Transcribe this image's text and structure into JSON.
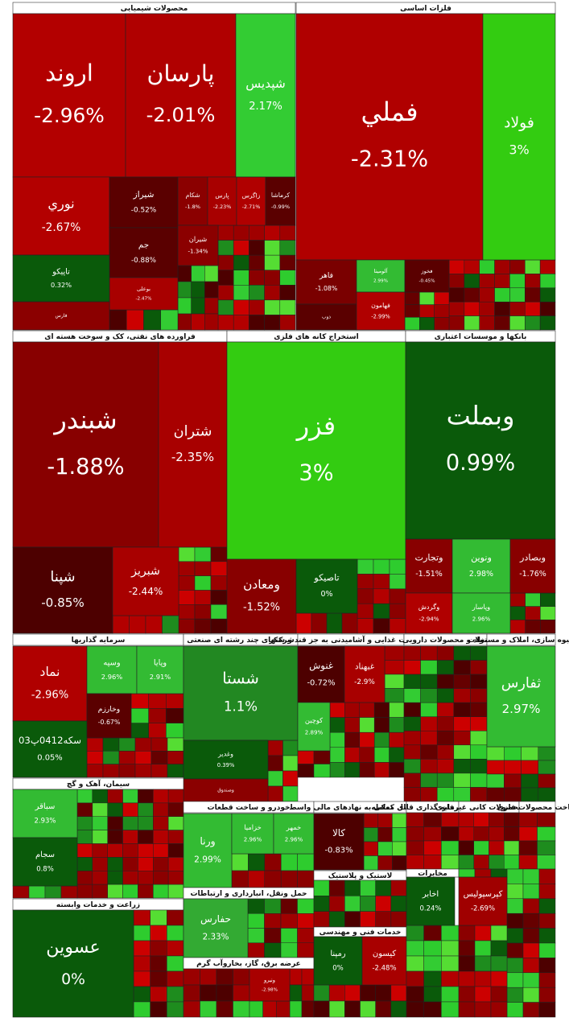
{
  "sectors": [
    {
      "title": "محصولات شیمیایی",
      "tiles": [
        {
          "name": "اروند",
          "change": "-2.96%",
          "color": "#b30000"
        },
        {
          "name": "پارسان",
          "change": "-2.01%",
          "color": "#b00000"
        },
        {
          "name": "شپدیس",
          "change": "2.17%",
          "color": "#33cc33"
        },
        {
          "name": "نوري",
          "change": "-2.67%",
          "color": "#b30000"
        },
        {
          "name": "شیراز",
          "change": "-0.52%",
          "color": "#5a0000"
        },
        {
          "name": "جم",
          "change": "-0.88%",
          "color": "#5a0000"
        },
        {
          "name": "بوعلی",
          "change": "-2.47%",
          "color": "#a80000"
        },
        {
          "name": "تاپیکو",
          "change": "0.32%",
          "color": "#0a5a0a"
        },
        {
          "name": "فارس",
          "color": "#8b0000"
        },
        {
          "name": "شکام",
          "change": "-1.8%",
          "color": "#8b0000"
        },
        {
          "name": "پارس",
          "change": "-2.23%",
          "color": "#a80000"
        },
        {
          "name": "زاگرس",
          "change": "-2.71%",
          "color": "#b00000"
        },
        {
          "name": "کرماشا",
          "change": "-0.99%",
          "color": "#5a0000"
        },
        {
          "name": "شیران",
          "change": "-1.34%",
          "color": "#8b0000"
        }
      ]
    },
    {
      "title": "فلزات اساسی",
      "tiles": [
        {
          "name": "فملي",
          "change": "-2.31%",
          "color": "#b00000"
        },
        {
          "name": "فولاد",
          "change": "3%",
          "color": "#33cc11"
        },
        {
          "name": "فاهر",
          "change": "-1.08%",
          "color": "#7a0000"
        },
        {
          "name": "آلومینا",
          "change": "2.99%",
          "color": "#33bb33"
        },
        {
          "name": "فخوز",
          "change": "-0.45%",
          "color": "#5a0000"
        },
        {
          "name": "ذوب",
          "color": "#5a0000"
        },
        {
          "name": "فهامون",
          "change": "-2.99%",
          "color": "#b00000"
        }
      ]
    },
    {
      "title": "فراورده های نفتی، کک و سوخت هسته ای",
      "tiles": [
        {
          "name": "شبندر",
          "change": "-1.88%",
          "color": "#880000"
        },
        {
          "name": "شتران",
          "change": "-2.35%",
          "color": "#a80000"
        },
        {
          "name": "شپنا",
          "change": "-0.85%",
          "color": "#4d0000"
        },
        {
          "name": "شبریز",
          "change": "-2.44%",
          "color": "#a80000"
        }
      ]
    },
    {
      "title": "استخراج کانه های فلزی",
      "tiles": [
        {
          "name": "فزر",
          "change": "3%",
          "color": "#33cc11"
        },
        {
          "name": "ومعادن",
          "change": "-1.52%",
          "color": "#880000"
        },
        {
          "name": "تاصیکو",
          "change": "0%",
          "color": "#0a5a0a"
        }
      ]
    },
    {
      "title": "بانکها و موسسات اعتباری",
      "tiles": [
        {
          "name": "وبملت",
          "change": "0.99%",
          "color": "#0a5a0a"
        },
        {
          "name": "وتجارت",
          "change": "-1.51%",
          "color": "#880000"
        },
        {
          "name": "ونوین",
          "change": "2.98%",
          "color": "#33bb33"
        },
        {
          "name": "وبصادر",
          "change": "-1.76%",
          "color": "#880000"
        },
        {
          "name": "وگردش",
          "change": "-2.94%",
          "color": "#b00000"
        },
        {
          "name": "وپاسار",
          "change": "2.96%",
          "color": "#33bb33"
        }
      ]
    },
    {
      "title": "سرمایه گذاریها",
      "tiles": [
        {
          "name": "نماد",
          "change": "-2.96%",
          "color": "#b00000"
        },
        {
          "name": "وسپه",
          "change": "2.96%",
          "color": "#33bb33"
        },
        {
          "name": "وپایا",
          "change": "2.91%",
          "color": "#33bb33"
        },
        {
          "name": "سکه0412پ03",
          "change": "0.05%",
          "color": "#0a5a0a"
        },
        {
          "name": "وخارزم",
          "change": "-0.67%",
          "color": "#5a0000"
        }
      ]
    },
    {
      "title": "شرکتهای چند رشته ای صنعتی",
      "tiles": [
        {
          "name": "شستا",
          "change": "1.1%",
          "color": "#228822"
        },
        {
          "name": "وغدیر",
          "change": "0.39%",
          "color": "#0a5a0a"
        },
        {
          "name": "وصندوق",
          "color": "#8b0000"
        }
      ]
    },
    {
      "title": "محصولات غذایی و آشامیدنی به جز قند و شکر",
      "tiles": [
        {
          "name": "غنوش",
          "change": "-0.72%",
          "color": "#4d0000"
        },
        {
          "name": "غبهناد",
          "change": "-2.9%",
          "color": "#a80000"
        },
        {
          "name": "کوچین",
          "change": "2.89%",
          "color": "#33bb33"
        }
      ]
    },
    {
      "title": "مواد و محصولات دارویی",
      "tiles": []
    },
    {
      "title": "انبوه سازی، املاک و مستغلات",
      "tiles": [
        {
          "name": "ثفارس",
          "change": "2.97%",
          "color": "#33bb33"
        }
      ]
    },
    {
      "title": "سیمان، آهک و گچ",
      "tiles": [
        {
          "name": "سباقر",
          "change": "2.93%",
          "color": "#33bb33"
        },
        {
          "name": "سجام",
          "change": "0.8%",
          "color": "#0a5a0a"
        }
      ]
    },
    {
      "title": "زراعت و خدمات وابسته",
      "tiles": [
        {
          "name": "عسوین",
          "change": "0%",
          "color": "#0a5a0a"
        }
      ]
    },
    {
      "title": "خودرو و ساخت قطعات",
      "tiles": [
        {
          "name": "ورنا",
          "change": "2.99%",
          "color": "#33bb33"
        },
        {
          "name": "خزامیا",
          "change": "2.96%",
          "color": "#33bb33"
        },
        {
          "name": "خمهر",
          "change": "2.96%",
          "color": "#33bb33"
        }
      ]
    },
    {
      "title": "حمل ونقل، انبارداری و ارتباطات",
      "tiles": [
        {
          "name": "حفارس",
          "change": "2.33%",
          "color": "#33aa33"
        }
      ]
    },
    {
      "title": "عرضه برق، گاز، بخاروآب گرم",
      "tiles": [
        {
          "name": "ونیرو",
          "change": "-2.98%",
          "color": "#a80000"
        }
      ]
    },
    {
      "title": "فعالیتهای کمکی به نهادهای مالی واسط",
      "tiles": [
        {
          "name": "کالا",
          "change": "-0.83%",
          "color": "#4d0000"
        }
      ]
    },
    {
      "title": "لاستیک و پلاستیک",
      "tiles": []
    },
    {
      "title": "خدمات فنی و مهندسی",
      "tiles": [
        {
          "name": "رمپنا",
          "change": "0%",
          "color": "#0a5a0a"
        },
        {
          "name": "کیسون",
          "change": "-2.48%",
          "color": "#a80000"
        }
      ]
    },
    {
      "title": "صندوق سرمایه گذاری قابل معامله",
      "tiles": []
    },
    {
      "title": "سایر محصولات کانی غیرفلزی",
      "tiles": []
    },
    {
      "title": "ساخت محصولات فلزی",
      "tiles": []
    },
    {
      "title": "مخابرات",
      "tiles": [
        {
          "name": "اخابر",
          "change": "0.24%",
          "color": "#0a5a0a"
        },
        {
          "name": "کپرسپولیس",
          "change": "-2.69%",
          "color": "#a00000"
        }
      ]
    }
  ]
}
